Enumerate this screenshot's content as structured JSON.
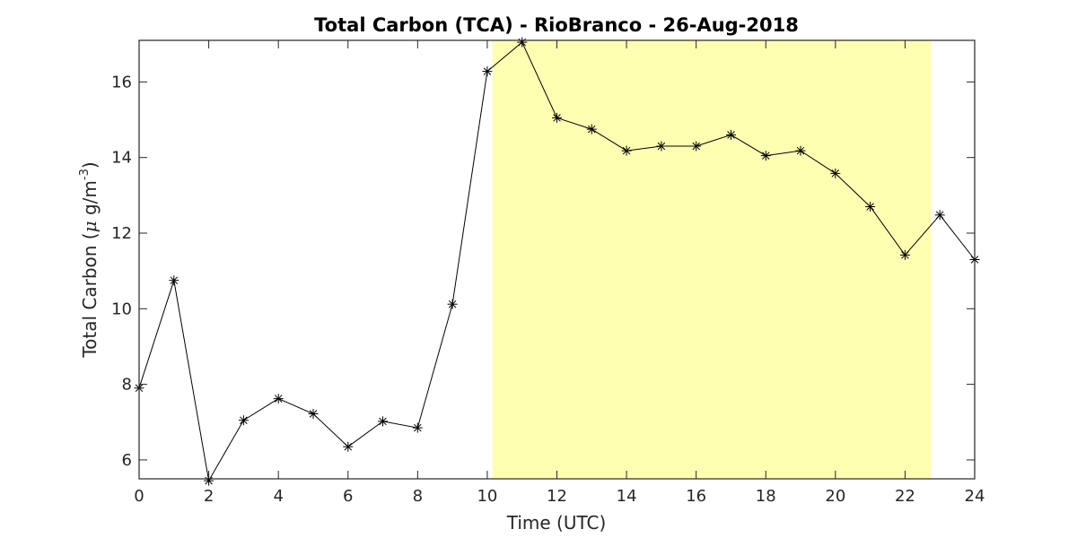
{
  "chart_data": {
    "type": "line",
    "title": "Total Carbon (TCA) - RioBranco - 26-Aug-2018",
    "xlabel": "Time (UTC)",
    "ylabel": {
      "prefix": "Total Carbon (",
      "mu": "μ",
      "mid": " g/m",
      "sup": "-3",
      "suffix": ")"
    },
    "xlim": [
      0,
      24
    ],
    "ylim": [
      5.5,
      17.1
    ],
    "x_ticks": [
      0,
      2,
      4,
      6,
      8,
      10,
      12,
      14,
      16,
      18,
      20,
      22,
      24
    ],
    "y_ticks": [
      6,
      8,
      10,
      12,
      14,
      16
    ],
    "grid": false,
    "highlight": {
      "x_start": 10.15,
      "x_end": 22.75,
      "color": "#ffffb2"
    },
    "series": [
      {
        "marker": "asterisk",
        "color": "#000000",
        "x": [
          0,
          1,
          2,
          3,
          4,
          5,
          6,
          7,
          8,
          9,
          10,
          11,
          12,
          13,
          14,
          15,
          16,
          17,
          18,
          19,
          20,
          21,
          22,
          23,
          24
        ],
        "y": [
          7.9,
          10.75,
          5.45,
          7.05,
          7.62,
          7.22,
          6.35,
          7.02,
          6.85,
          10.12,
          16.28,
          17.05,
          15.05,
          14.75,
          14.18,
          14.3,
          14.3,
          14.6,
          14.05,
          14.18,
          13.58,
          12.7,
          11.42,
          12.48,
          11.3
        ]
      }
    ]
  }
}
